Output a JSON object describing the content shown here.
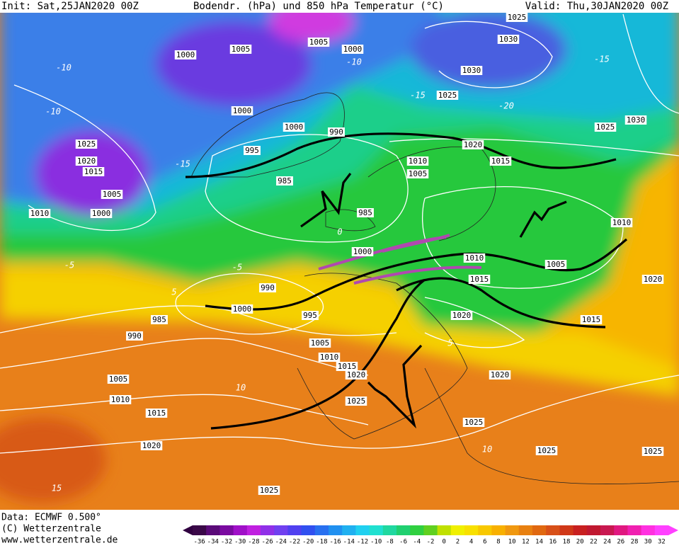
{
  "header": {
    "init": "Init: Sat,25JAN2020 00Z",
    "title": "Bodendr. (hPa) und 850 hPa Temperatur (°C)",
    "valid": "Valid: Thu,30JAN2020 00Z"
  },
  "footer": {
    "data": "Data: ECMWF  0.500°",
    "copyright": "(C) Wetterzentrale",
    "url": "www.wetterzentrale.de"
  },
  "isobar_labels": [
    "1025",
    "1005",
    "1005",
    "1000",
    "1000",
    "1030",
    "1030",
    "1025",
    "1000",
    "1000",
    "995",
    "990",
    "985",
    "985",
    "1025",
    "1020",
    "1015",
    "1005",
    "1000",
    "1010",
    "1010",
    "1005",
    "1020",
    "1015",
    "1025",
    "1030",
    "1010",
    "1005",
    "1010",
    "1015",
    "1020",
    "1015",
    "1020",
    "1000",
    "995",
    "990",
    "985",
    "990",
    "1005",
    "1010",
    "1015",
    "1020",
    "1025",
    "1005",
    "1010",
    "1015",
    "1020",
    "1020",
    "1025",
    "1025",
    "1025",
    "1025",
    "1000"
  ],
  "temperature_labels": [
    "-10",
    "-10",
    "-15",
    "-10",
    "-15",
    "-20",
    "-15",
    "-5",
    "-5",
    "0",
    "5",
    "10",
    "15",
    "10",
    "5"
  ],
  "colorbar": {
    "labels": [
      "-36",
      "-34",
      "-32",
      "-30",
      "-28",
      "-26",
      "-24",
      "-22",
      "-20",
      "-18",
      "-16",
      "-14",
      "-12",
      "-10",
      "-8",
      "-6",
      "-4",
      "-2",
      "0",
      "2",
      "4",
      "6",
      "8",
      "10",
      "12",
      "14",
      "16",
      "18",
      "20",
      "22",
      "24",
      "26",
      "28",
      "30",
      "32"
    ]
  }
}
